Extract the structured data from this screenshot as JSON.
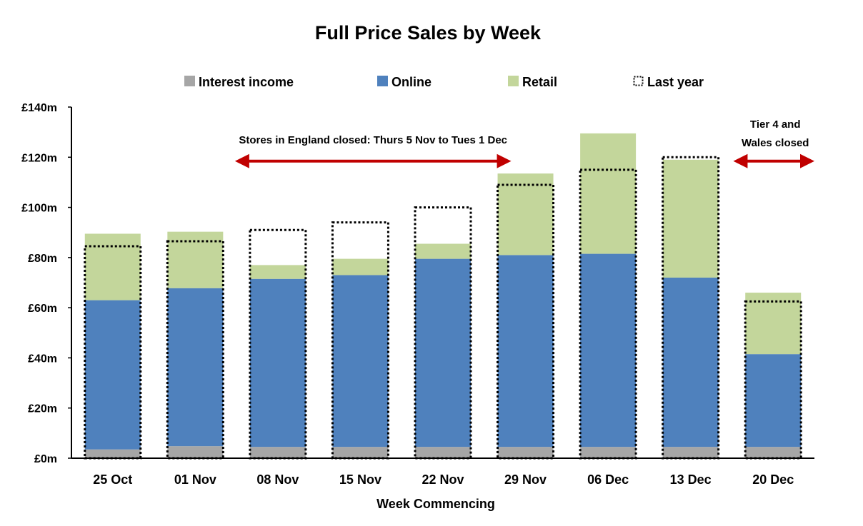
{
  "chart_data": {
    "type": "bar",
    "stacked": true,
    "title": "Full Price Sales by Week",
    "xlabel": "Week Commencing",
    "ylabel": "",
    "ylim": [
      0,
      140
    ],
    "yticks": [
      0,
      20,
      40,
      60,
      80,
      100,
      120,
      140
    ],
    "ytick_labels": [
      "£0m",
      "£20m",
      "£40m",
      "£60m",
      "£80m",
      "£100m",
      "£120m",
      "£140m"
    ],
    "categories": [
      "25 Oct",
      "01 Nov",
      "08 Nov",
      "15 Nov",
      "22 Nov",
      "29 Nov",
      "06 Dec",
      "13 Dec",
      "20 Dec"
    ],
    "series": [
      {
        "name": "Interest income",
        "color": "#a6a6a6",
        "values": [
          3.5,
          4.8,
          4.5,
          4.5,
          4.5,
          4.5,
          4.5,
          4.5,
          4.5
        ]
      },
      {
        "name": "Online",
        "color": "#4f81bd",
        "values": [
          59.5,
          63.0,
          67.0,
          68.5,
          75.0,
          76.5,
          77.0,
          67.5,
          37.0
        ]
      },
      {
        "name": "Retail",
        "color": "#c3d69b",
        "values": [
          26.5,
          22.5,
          5.5,
          6.5,
          6.0,
          32.5,
          48.0,
          47.0,
          24.5
        ]
      }
    ],
    "last_year": {
      "name": "Last year",
      "style": "dotted-outline",
      "values": [
        84.5,
        86.5,
        91.0,
        94.0,
        100.0,
        109.0,
        115.0,
        120.0,
        62.5
      ]
    },
    "legend": {
      "position": "top",
      "items": [
        "Interest income",
        "Online",
        "Retail",
        "Last year"
      ]
    },
    "annotations": [
      {
        "text": "Stores in England closed: Thurs 5 Nov to Tues 1 Dec",
        "from_category": "08 Nov",
        "to_category": "29 Nov",
        "arrow_color": "#c00000",
        "y_value": 119
      },
      {
        "text_lines": [
          "Tier 4 and",
          "Wales closed"
        ],
        "from_category": "20 Dec",
        "to_category": "20 Dec",
        "arrow_color": "#c00000",
        "y_value": 119
      }
    ]
  }
}
